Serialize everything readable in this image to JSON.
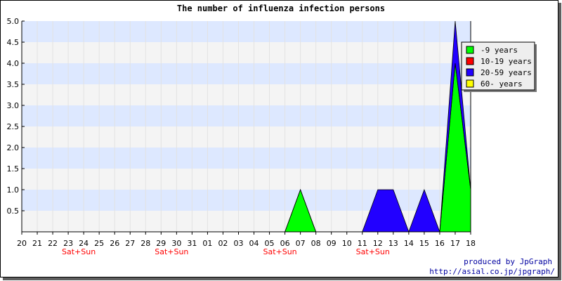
{
  "chart_data": {
    "type": "area",
    "title": "The number of influenza infection persons",
    "xlabel": "",
    "ylabel": "",
    "ylim": [
      0,
      5
    ],
    "yticks": [
      "0.5",
      "1.0",
      "1.5",
      "2.0",
      "2.5",
      "3.0",
      "3.5",
      "4.0",
      "4.5",
      "5.0"
    ],
    "categories": [
      "20",
      "21",
      "22",
      "23",
      "24",
      "25",
      "26",
      "27",
      "28",
      "29",
      "30",
      "31",
      "01",
      "02",
      "03",
      "04",
      "05",
      "06",
      "07",
      "08",
      "09",
      "10",
      "11",
      "12",
      "13",
      "14",
      "15",
      "16",
      "17",
      "18"
    ],
    "weekend_label": "Sat+Sun",
    "weekend_positions": [
      "23",
      "24",
      "30",
      "31",
      "06",
      "07",
      "13",
      "14"
    ],
    "weekend_label_under": [
      "24",
      "30",
      "06",
      "12"
    ],
    "stacked": true,
    "grid": true,
    "legend_position": "top-right",
    "series": [
      {
        "name": "-9 years",
        "color": "#00ff00",
        "values": [
          0,
          0,
          0,
          0,
          0,
          0,
          0,
          0,
          0,
          0,
          0,
          0,
          0,
          0,
          0,
          0,
          0,
          0,
          1,
          0,
          0,
          0,
          0,
          0,
          0,
          0,
          0,
          0,
          4,
          1
        ]
      },
      {
        "name": "10-19 years",
        "color": "#ff0000",
        "values": [
          0,
          0,
          0,
          0,
          0,
          0,
          0,
          0,
          0,
          0,
          0,
          0,
          0,
          0,
          0,
          0,
          0,
          0,
          0,
          0,
          0,
          0,
          0,
          0,
          0,
          0,
          0,
          0,
          0,
          0
        ]
      },
      {
        "name": "20-59 years",
        "color": "#2200ff",
        "values": [
          0,
          0,
          0,
          0,
          0,
          0,
          0,
          0,
          0,
          0,
          0,
          0,
          0,
          0,
          0,
          0,
          0,
          0,
          0,
          0,
          0,
          0,
          0,
          1,
          1,
          0,
          1,
          0,
          1,
          0
        ]
      },
      {
        "name": "60- years",
        "color": "#ffff00",
        "values": [
          0,
          0,
          0,
          0,
          0,
          0,
          0,
          0,
          0,
          0,
          0,
          0,
          0,
          0,
          0,
          0,
          0,
          0,
          0,
          0,
          0,
          0,
          0,
          0,
          0,
          0,
          0,
          0,
          0,
          0
        ]
      }
    ],
    "credits": [
      "produced by JpGraph",
      "http://asial.co.jp/jpgraph/"
    ]
  },
  "colors": {
    "band_a": "#dde8ff",
    "band_b": "#f4f4f4",
    "legend_bg": "#eeeeee"
  }
}
